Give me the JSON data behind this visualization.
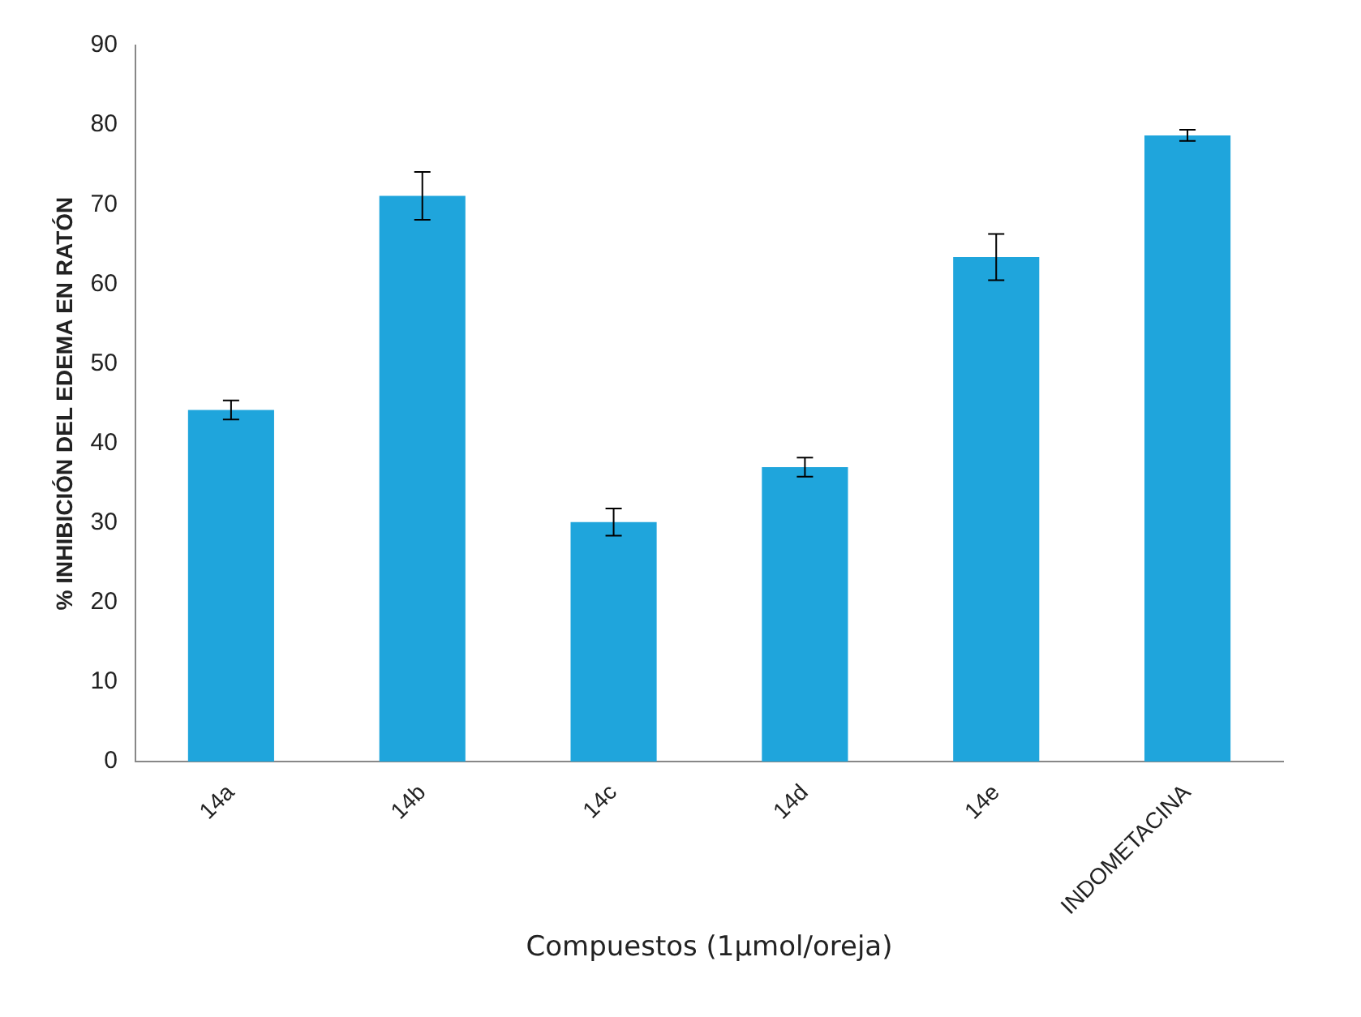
{
  "chart_data": {
    "type": "bar",
    "xlabel": "Compuestos (1µmol/oreja)",
    "ylabel": "% INHIBICIÓN DEL EDEMA EN RATÓN",
    "categories": [
      "14a",
      "14b",
      "14c",
      "14d",
      "14e",
      "INDOMETACINA"
    ],
    "values": [
      44.2,
      71.1,
      30.1,
      37.0,
      63.4,
      78.7
    ],
    "errors": [
      1.2,
      3.0,
      1.7,
      1.2,
      2.9,
      0.7
    ],
    "color": "#1fa5dc",
    "ylim": [
      0,
      90
    ],
    "yticks": [
      0,
      10,
      20,
      30,
      40,
      50,
      60,
      70,
      80,
      90
    ],
    "grid": false,
    "legend": false
  }
}
